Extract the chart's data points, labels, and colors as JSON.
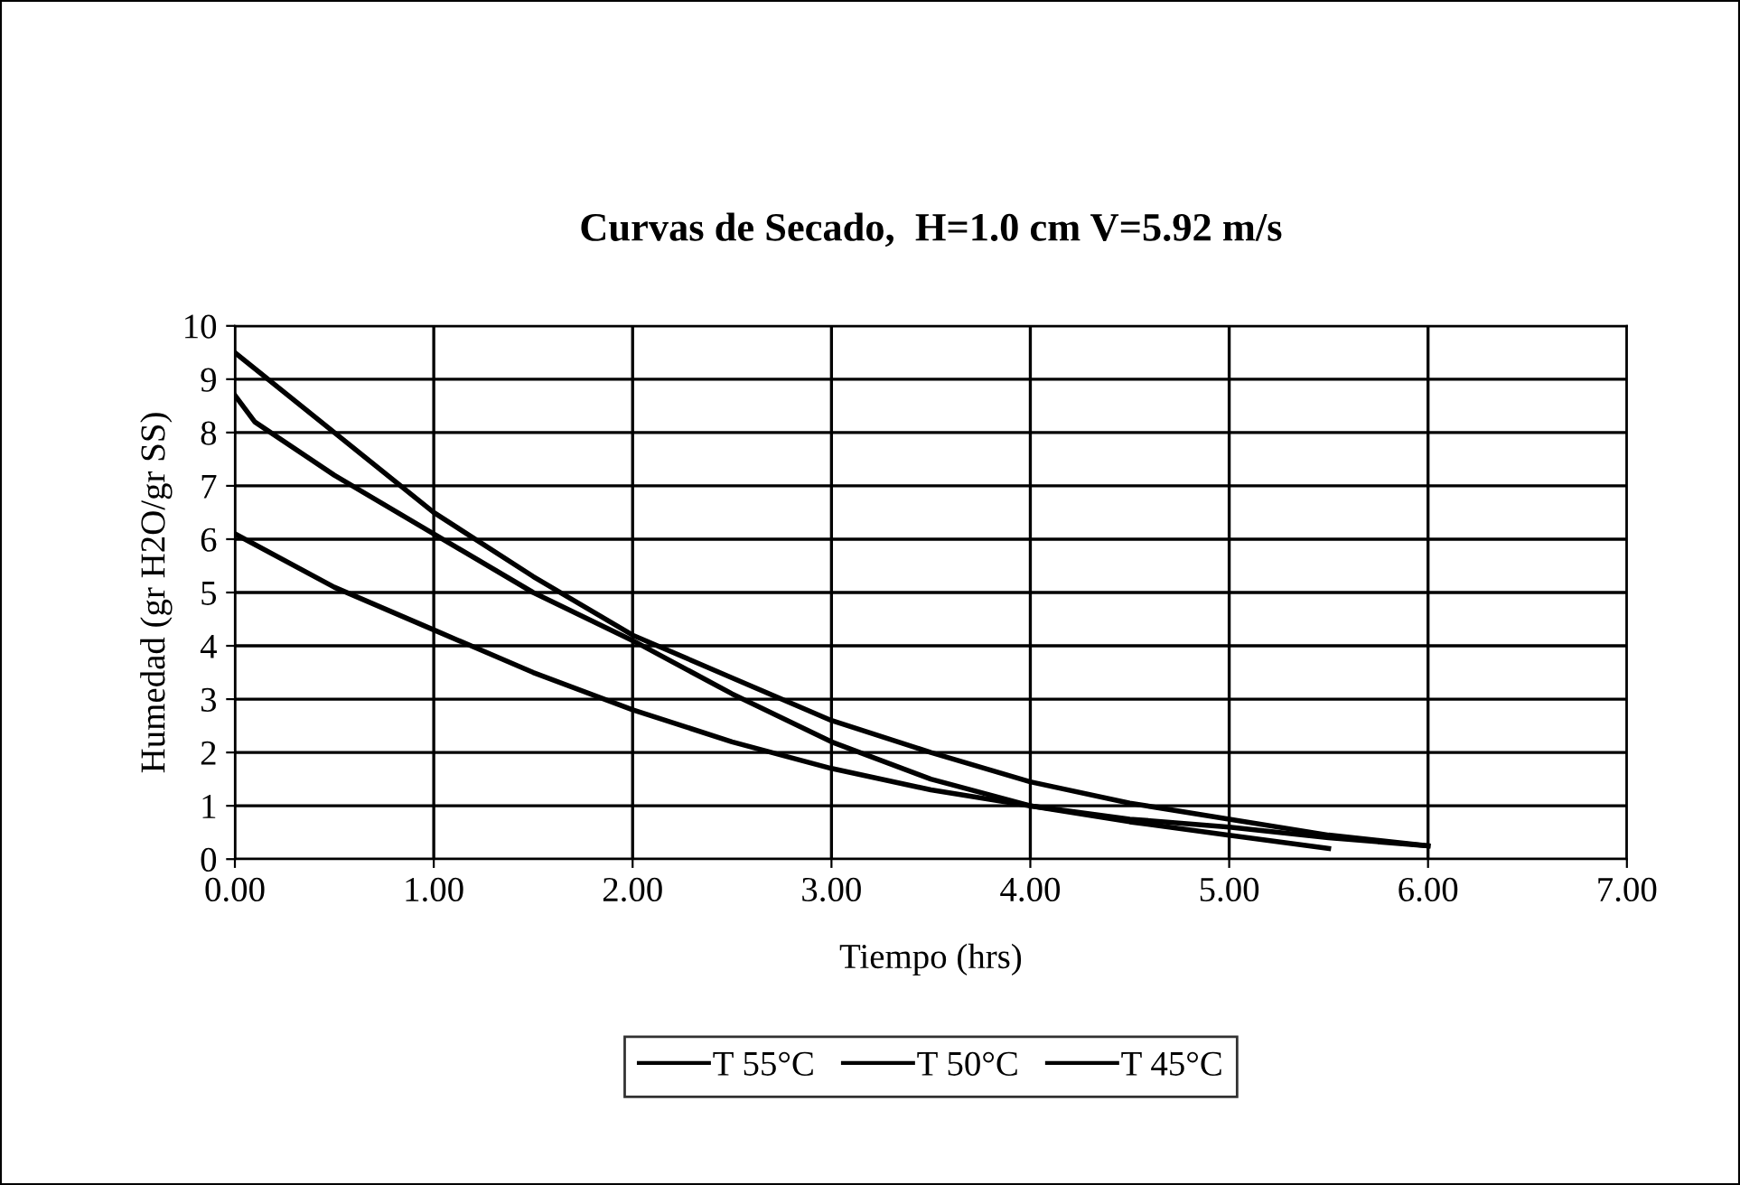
{
  "chart_data": {
    "type": "line",
    "title": "Curvas de Secado,  H=1.0 cm V=5.92 m/s",
    "xlabel": "Tiempo (hrs)",
    "ylabel": "Humedad (gr H2O/gr SS)",
    "xlim": [
      0,
      7
    ],
    "xticks": [
      {
        "value": 0,
        "label": "0.00"
      },
      {
        "value": 1,
        "label": "1.00"
      },
      {
        "value": 2,
        "label": "2.00"
      },
      {
        "value": 3,
        "label": "3.00"
      },
      {
        "value": 4,
        "label": "4.00"
      },
      {
        "value": 5,
        "label": "5.00"
      },
      {
        "value": 6,
        "label": "6.00"
      },
      {
        "value": 7,
        "label": "7.00"
      }
    ],
    "ylim": [
      0,
      10
    ],
    "yticks": [
      0,
      1,
      2,
      3,
      4,
      5,
      6,
      7,
      8,
      9,
      10
    ],
    "grid": true,
    "legend": "bottom",
    "marker": "none",
    "line_style": "solid",
    "series": [
      {
        "name": "T 55°C",
        "color": "#000000",
        "x": [
          0,
          0.5,
          1,
          1.5,
          2,
          2.5,
          3,
          3.5,
          4,
          4.5,
          5,
          5.5,
          6
        ],
        "values": [
          9.5,
          8.0,
          6.5,
          5.3,
          4.2,
          3.4,
          2.6,
          2.0,
          1.45,
          1.05,
          0.75,
          0.45,
          0.25
        ]
      },
      {
        "name": "T 50°C",
        "color": "#000000",
        "x": [
          0,
          0.1,
          0.5,
          1,
          1.5,
          2,
          2.5,
          3,
          3.5,
          4,
          4.5,
          5,
          5.5,
          6
        ],
        "values": [
          8.7,
          8.2,
          7.2,
          6.1,
          5.0,
          4.1,
          3.1,
          2.2,
          1.5,
          1.0,
          0.75,
          0.6,
          0.4,
          0.25
        ]
      },
      {
        "name": "T 45°C",
        "color": "#000000",
        "x": [
          0,
          0.5,
          1,
          1.5,
          2,
          2.5,
          3,
          3.5,
          4,
          4.5,
          5,
          5.5
        ],
        "values": [
          6.1,
          5.1,
          4.3,
          3.5,
          2.8,
          2.2,
          1.7,
          1.3,
          1.0,
          0.7,
          0.45,
          0.2
        ]
      }
    ]
  }
}
